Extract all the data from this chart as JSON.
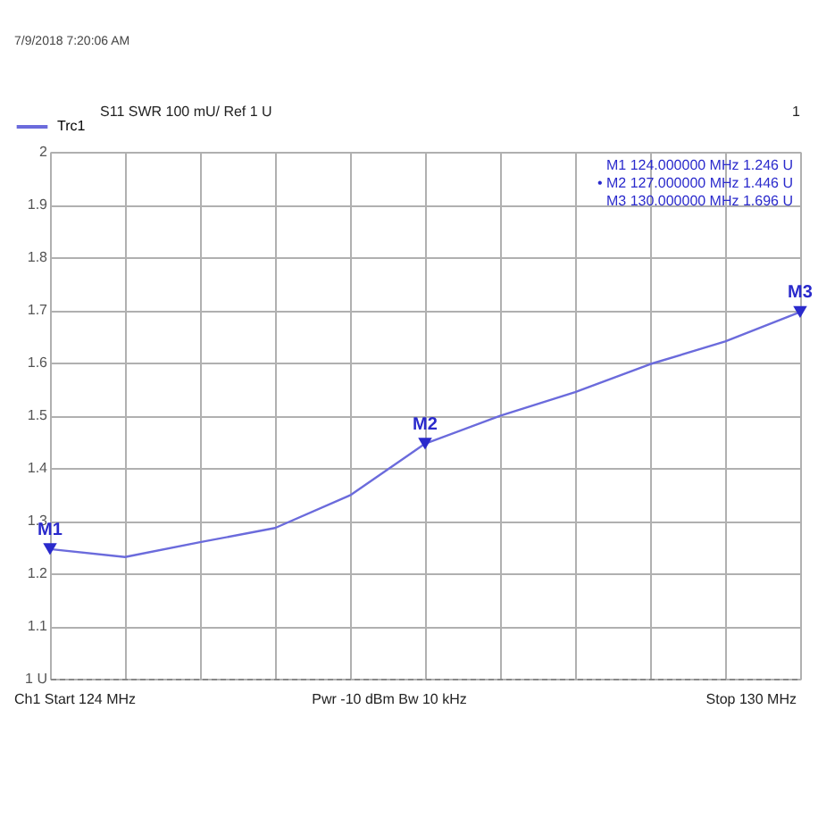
{
  "chart_data": {
    "type": "line",
    "categories": [
      null,
      null,
      null,
      null,
      null,
      null,
      null,
      null,
      null,
      null,
      null
    ],
    "series": [
      {
        "name": "Trc1",
        "color": "#6b6bdc",
        "values": [
          1.246,
          1.231,
          1.259,
          1.286,
          1.348,
          1.446,
          1.499,
          1.544,
          1.597,
          1.64,
          1.696
        ]
      }
    ],
    "ylim": [
      1,
      2
    ],
    "yticks": [
      {
        "value": 1,
        "label": "1 U"
      },
      1.1,
      1.2,
      1.3,
      1.4,
      1.5,
      1.6,
      1.7,
      1.8,
      1.9,
      2
    ],
    "tick_labels": "y",
    "grid": true,
    "legend": "top left",
    "marker": "none",
    "line_style": "solid",
    "annotations": [
      "7/9/2018 7:20:06 AM",
      "S11  SWR  100 mU/ Ref 1 U",
      "1",
      "M1  124.000000  MHz  1.246 U",
      "• M2  127.000000  MHz  1.446 U",
      "M3  130.000000  MHz  1.696 U",
      "Ch1  Start  124 MHz",
      "Pwr  -10 dBm  Bw  10 kHz",
      "Stop  130 MHz",
      {
        "text": "M1",
        "y": 1.246
      },
      {
        "text": "M2",
        "y": 1.446
      },
      {
        "text": "M3",
        "y": 1.696
      }
    ]
  }
}
